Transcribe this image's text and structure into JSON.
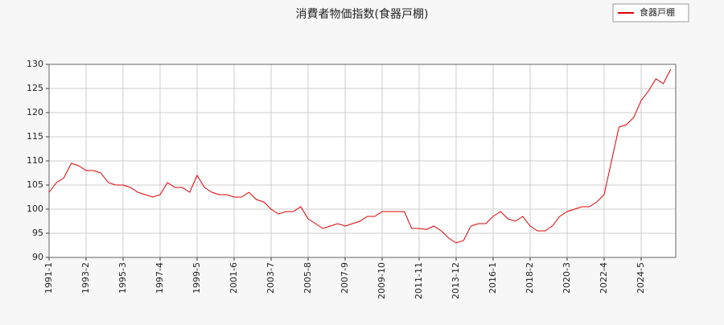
{
  "chart_data": {
    "type": "line",
    "title": "消費者物価指数(食器戸棚)",
    "categories": [
      "1991-1",
      null,
      null,
      null,
      null,
      "1993-2",
      null,
      null,
      null,
      null,
      "1995-3",
      null,
      null,
      null,
      null,
      "1997-4",
      null,
      null,
      null,
      null,
      "1999-5",
      null,
      null,
      null,
      null,
      "2001-6",
      null,
      null,
      null,
      null,
      "2003-7",
      null,
      null,
      null,
      null,
      "2005-8",
      null,
      null,
      null,
      null,
      "2007-9",
      null,
      null,
      null,
      null,
      "2009-10",
      null,
      null,
      null,
      null,
      "2011-11",
      null,
      null,
      null,
      null,
      "2013-12",
      null,
      null,
      null,
      null,
      "2016-1",
      null,
      null,
      null,
      null,
      "2018-2",
      null,
      null,
      null,
      null,
      "2020-3",
      null,
      null,
      null,
      null,
      "2022-4",
      null,
      null,
      null,
      null,
      "2024-5",
      null,
      null,
      null,
      null
    ],
    "series": [
      {
        "name": "食器戸棚",
        "color": "#dd0000",
        "values": [
          103.5,
          105.5,
          106.5,
          109.5,
          109,
          108,
          108,
          107.5,
          105.5,
          105,
          105,
          104.5,
          103.5,
          103,
          102.5,
          103,
          105.5,
          104.5,
          104.5,
          103.5,
          107,
          104.5,
          103.5,
          103,
          103,
          102.5,
          102.5,
          103.5,
          102,
          101.5,
          100,
          99,
          99.5,
          99.5,
          100.5,
          98,
          97,
          96,
          96.5,
          97,
          96.5,
          97,
          97.5,
          98.5,
          98.5,
          99.5,
          99.5,
          99.5,
          99.5,
          96,
          96,
          95.8,
          96.5,
          95.5,
          94,
          93,
          93.5,
          96.5,
          97,
          97,
          98.5,
          99.5,
          98,
          97.5,
          98.5,
          96.5,
          95.5,
          95.5,
          96.5,
          98.5,
          99.5,
          100,
          100.5,
          100.5,
          101.5,
          103,
          110,
          117,
          117.5,
          119,
          122.5,
          124.5,
          127,
          126,
          129
        ]
      }
    ],
    "ylim": [
      90,
      130
    ],
    "yticks": [
      90,
      95,
      100,
      105,
      110,
      115,
      120,
      125,
      130
    ],
    "grid": true,
    "legend": "top-right"
  }
}
